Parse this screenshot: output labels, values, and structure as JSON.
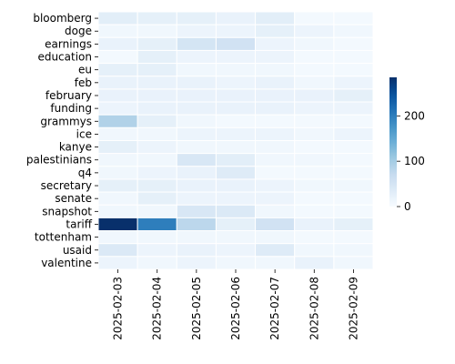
{
  "chart_data": {
    "type": "heatmap",
    "x": [
      "2025-02-03",
      "2025-02-04",
      "2025-02-05",
      "2025-02-06",
      "2025-02-07",
      "2025-02-08",
      "2025-02-09"
    ],
    "y": [
      "bloomberg",
      "doge",
      "earnings",
      "education",
      "eu",
      "feb",
      "february",
      "funding",
      "grammys",
      "ice",
      "kanye",
      "palestinians",
      "q4",
      "secretary",
      "senate",
      "snapshot",
      "tariff",
      "tottenham",
      "usaid",
      "valentine"
    ],
    "values": [
      [
        30,
        25,
        25,
        20,
        30,
        5,
        5
      ],
      [
        10,
        10,
        15,
        15,
        25,
        15,
        10
      ],
      [
        20,
        25,
        50,
        55,
        15,
        10,
        5
      ],
      [
        5,
        25,
        15,
        15,
        15,
        5,
        5
      ],
      [
        25,
        25,
        10,
        10,
        10,
        5,
        5
      ],
      [
        20,
        20,
        20,
        15,
        20,
        10,
        15
      ],
      [
        20,
        20,
        20,
        20,
        20,
        20,
        25
      ],
      [
        15,
        20,
        20,
        20,
        20,
        15,
        15
      ],
      [
        90,
        25,
        10,
        5,
        5,
        5,
        5
      ],
      [
        10,
        10,
        15,
        15,
        15,
        10,
        15
      ],
      [
        25,
        15,
        10,
        10,
        10,
        5,
        5
      ],
      [
        10,
        10,
        45,
        30,
        10,
        10,
        5
      ],
      [
        10,
        15,
        20,
        35,
        5,
        5,
        5
      ],
      [
        25,
        25,
        20,
        20,
        15,
        10,
        10
      ],
      [
        10,
        25,
        15,
        15,
        15,
        5,
        5
      ],
      [
        10,
        10,
        45,
        40,
        10,
        5,
        5
      ],
      [
        285,
        200,
        80,
        25,
        55,
        20,
        25
      ],
      [
        10,
        10,
        10,
        10,
        10,
        5,
        5
      ],
      [
        40,
        15,
        20,
        15,
        35,
        10,
        10
      ],
      [
        15,
        10,
        15,
        10,
        10,
        20,
        10
      ]
    ],
    "colorbar": {
      "min": 0,
      "max": 285,
      "ticks": [
        0,
        100,
        200
      ]
    },
    "colormap": "Blues",
    "title": "",
    "xlabel": "",
    "ylabel": ""
  }
}
